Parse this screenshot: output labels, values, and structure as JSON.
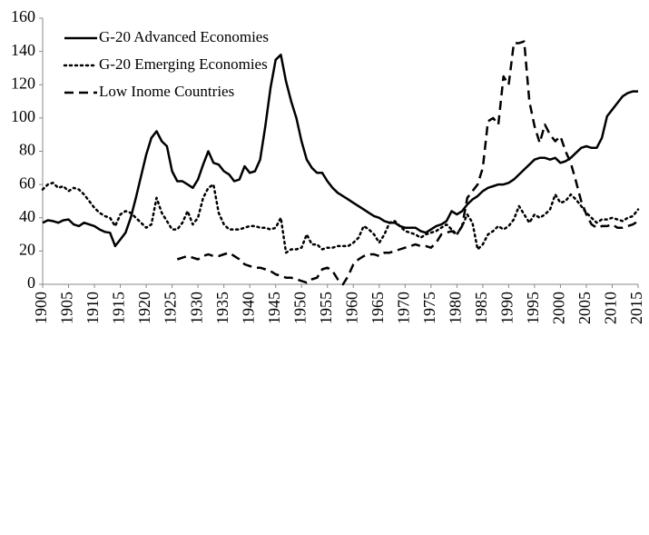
{
  "chart_data": {
    "type": "line",
    "x": [
      1900,
      1901,
      1902,
      1903,
      1904,
      1905,
      1906,
      1907,
      1908,
      1909,
      1910,
      1911,
      1912,
      1913,
      1914,
      1915,
      1916,
      1917,
      1918,
      1919,
      1920,
      1921,
      1922,
      1923,
      1924,
      1925,
      1926,
      1927,
      1928,
      1929,
      1930,
      1931,
      1932,
      1933,
      1934,
      1935,
      1936,
      1937,
      1938,
      1939,
      1940,
      1941,
      1942,
      1943,
      1944,
      1945,
      1946,
      1947,
      1948,
      1949,
      1950,
      1951,
      1952,
      1953,
      1954,
      1955,
      1956,
      1957,
      1958,
      1959,
      1960,
      1961,
      1962,
      1963,
      1964,
      1965,
      1966,
      1967,
      1968,
      1969,
      1970,
      1971,
      1972,
      1973,
      1974,
      1975,
      1976,
      1977,
      1978,
      1979,
      1980,
      1981,
      1982,
      1983,
      1984,
      1985,
      1986,
      1987,
      1988,
      1989,
      1990,
      1991,
      1992,
      1993,
      1994,
      1995,
      1996,
      1997,
      1998,
      1999,
      2000,
      2001,
      2002,
      2003,
      2004,
      2005,
      2006,
      2007,
      2008,
      2009,
      2010,
      2011,
      2012,
      2013,
      2014,
      2015
    ],
    "series": [
      {
        "name": "G-20 Advanced Economies",
        "color": "#000000",
        "dash": "solid",
        "values": [
          37,
          38.5,
          38,
          37,
          38.5,
          39,
          36,
          35,
          37,
          36,
          35,
          33,
          31.5,
          31,
          23,
          27,
          31,
          40,
          52,
          65,
          78,
          88,
          92,
          86,
          83,
          68,
          62,
          62,
          60,
          58,
          63,
          72,
          80,
          73,
          72,
          68,
          66,
          62,
          63,
          71,
          67,
          68,
          75,
          95,
          118,
          135,
          138,
          122,
          110,
          100,
          86,
          75,
          70,
          67,
          67,
          62,
          58,
          55,
          53,
          51,
          49,
          47,
          45,
          43,
          41,
          40,
          38,
          37,
          37,
          35,
          34,
          34,
          34,
          32,
          31,
          33,
          35,
          36,
          38,
          44,
          42,
          44,
          48,
          51,
          53,
          56,
          58,
          59,
          60,
          60,
          61,
          63,
          66,
          69,
          72,
          75,
          76,
          76,
          75,
          76,
          73,
          74,
          76,
          79,
          82,
          83,
          82,
          82,
          88,
          101,
          105,
          109,
          113,
          115,
          116,
          116
        ]
      },
      {
        "name": "G-20 Emerging Economies",
        "color": "#000000",
        "dash": "dotted",
        "values": [
          57,
          60,
          61,
          58,
          59,
          56,
          58,
          57,
          54,
          50,
          46,
          43,
          41,
          40,
          35,
          42,
          44,
          43,
          40,
          37,
          34,
          36,
          52,
          43,
          38,
          33,
          33,
          37,
          44,
          36,
          40,
          52,
          58,
          60,
          43,
          36,
          33,
          33,
          33,
          34,
          35,
          35,
          34,
          34,
          33,
          34,
          40,
          19,
          21,
          21,
          22,
          30,
          24,
          24,
          21,
          22,
          22,
          23,
          23,
          23,
          25,
          28,
          35,
          33,
          30,
          25,
          30,
          37,
          38,
          35,
          32,
          31,
          30,
          28,
          30,
          31,
          32,
          34,
          36,
          33,
          30,
          35,
          42,
          37,
          21,
          24,
          30,
          32,
          35,
          33,
          35,
          39,
          47,
          42,
          37,
          42,
          40,
          42,
          45,
          54,
          49,
          50,
          54,
          51,
          47,
          43,
          40,
          37,
          39,
          39,
          40,
          39,
          38,
          40,
          41,
          45
        ]
      },
      {
        "name": "Low Inome Countries",
        "color": "#000000",
        "dash": "dashed",
        "values": [
          null,
          null,
          null,
          null,
          null,
          null,
          null,
          null,
          null,
          null,
          null,
          null,
          null,
          null,
          null,
          null,
          null,
          null,
          null,
          null,
          null,
          null,
          null,
          null,
          null,
          null,
          15,
          16,
          17,
          16,
          15,
          17,
          18,
          17,
          17,
          18,
          19,
          17,
          15,
          12,
          11,
          10,
          10,
          9,
          8,
          6,
          5,
          4,
          4,
          3,
          2,
          1,
          3,
          4,
          9,
          10,
          8,
          3,
          0,
          5,
          12,
          15,
          17,
          18,
          18,
          17,
          19,
          19,
          20,
          21,
          22,
          23,
          24,
          23,
          23,
          22,
          25,
          30,
          31,
          32,
          30,
          35,
          52,
          56,
          60,
          70,
          98,
          100,
          96,
          125,
          120,
          145,
          145,
          146,
          110,
          95,
          85,
          96,
          90,
          86,
          89,
          80,
          73,
          62,
          50,
          42,
          36,
          34,
          35,
          35,
          36,
          34,
          34,
          35,
          36,
          38
        ]
      }
    ],
    "xlim": [
      1900,
      2015
    ],
    "xticks": [
      1900,
      1905,
      1910,
      1915,
      1920,
      1925,
      1930,
      1935,
      1940,
      1945,
      1950,
      1955,
      1960,
      1965,
      1970,
      1975,
      1980,
      1985,
      1990,
      1995,
      2000,
      2005,
      2010,
      2015
    ],
    "ylim": [
      0,
      160
    ],
    "yticks": [
      0,
      20,
      40,
      60,
      80,
      100,
      120,
      140,
      160
    ],
    "grid": false,
    "legend": "upper left"
  }
}
